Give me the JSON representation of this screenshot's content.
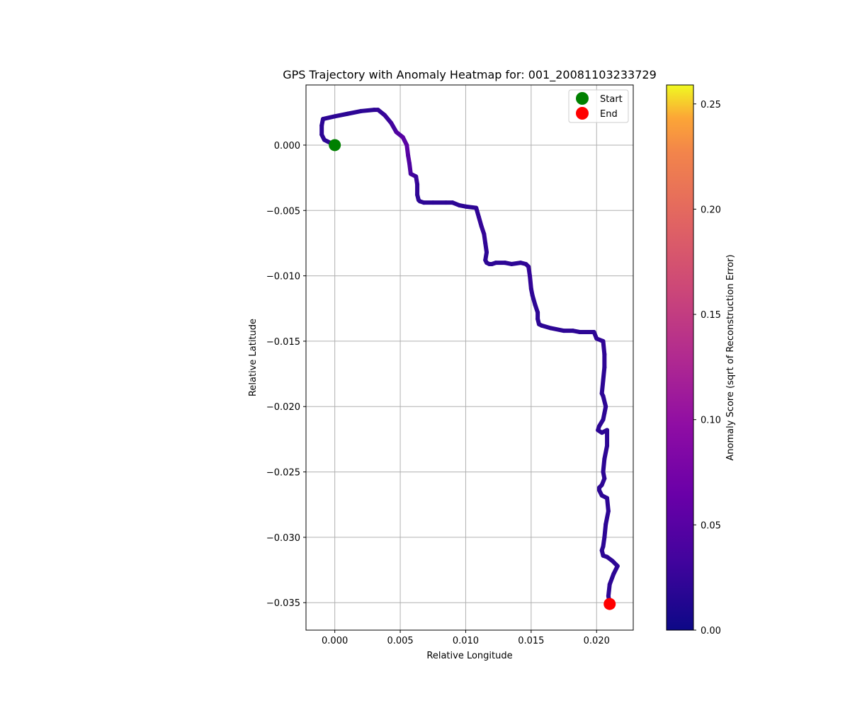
{
  "chart_data": {
    "type": "line",
    "title": "GPS Trajectory with Anomaly Heatmap for: 001_20081103233729",
    "xlabel": "Relative Longitude",
    "ylabel": "Relative Latitude",
    "xlim": [
      -0.0022,
      0.0228
    ],
    "ylim": [
      -0.0371,
      0.0046
    ],
    "xticks": [
      0.0,
      0.005,
      0.01,
      0.015,
      0.02
    ],
    "xtick_labels": [
      "0.000",
      "0.005",
      "0.010",
      "0.015",
      "0.020"
    ],
    "yticks": [
      0.0,
      -0.005,
      -0.01,
      -0.015,
      -0.02,
      -0.025,
      -0.03,
      -0.035
    ],
    "ytick_labels": [
      "0.000",
      "−0.005",
      "−0.010",
      "−0.015",
      "−0.020",
      "−0.025",
      "−0.030",
      "−0.035"
    ],
    "grid": true,
    "legend_placement": "top-right",
    "series": [
      {
        "name": "Start",
        "type": "scatter",
        "color": "#008000",
        "x": [
          0.0
        ],
        "y": [
          0.0
        ]
      },
      {
        "name": "End",
        "type": "scatter",
        "color": "#ff0000",
        "x": [
          0.021
        ],
        "y": [
          -0.0351
        ]
      }
    ],
    "trajectory": {
      "x": [
        0.0,
        -0.0008,
        -0.001,
        -0.001,
        -0.0009,
        0.0,
        0.001,
        0.002,
        0.003,
        0.0033,
        0.0038,
        0.0043,
        0.0047,
        0.0052,
        0.0055,
        0.0056,
        0.0057,
        0.0058,
        0.0062,
        0.0063,
        0.0063,
        0.0064,
        0.0065,
        0.0068,
        0.0075,
        0.0085,
        0.009,
        0.0095,
        0.01,
        0.0108,
        0.011,
        0.0112,
        0.0114,
        0.0115,
        0.0116,
        0.0115,
        0.0116,
        0.0118,
        0.012,
        0.0123,
        0.013,
        0.0135,
        0.0142,
        0.0146,
        0.0148,
        0.0149,
        0.015,
        0.0151,
        0.0153,
        0.0155,
        0.0155,
        0.0156,
        0.0158,
        0.0165,
        0.0175,
        0.0182,
        0.0187,
        0.0193,
        0.0198,
        0.02,
        0.0205,
        0.0206,
        0.0206,
        0.0205,
        0.0204,
        0.0205,
        0.0207,
        0.0206,
        0.0205,
        0.0202,
        0.0201,
        0.0204,
        0.0208,
        0.0208,
        0.0206,
        0.0205,
        0.0206,
        0.0204,
        0.0202,
        0.0202,
        0.0204,
        0.0208,
        0.0209,
        0.0207,
        0.0206,
        0.0205,
        0.0204,
        0.0205,
        0.0208,
        0.0212,
        0.0216,
        0.0213,
        0.021,
        0.0209,
        0.021
      ],
      "y": [
        0.0,
        0.0004,
        0.0008,
        0.0015,
        0.002,
        0.0022,
        0.0024,
        0.0026,
        0.0027,
        0.0027,
        0.0023,
        0.0017,
        0.001,
        0.0006,
        0.0,
        -0.0008,
        -0.0014,
        -0.0022,
        -0.0024,
        -0.003,
        -0.0038,
        -0.0042,
        -0.0043,
        -0.0044,
        -0.0044,
        -0.0044,
        -0.0044,
        -0.0046,
        -0.0047,
        -0.0048,
        -0.0055,
        -0.0062,
        -0.0068,
        -0.0075,
        -0.0082,
        -0.0088,
        -0.009,
        -0.0091,
        -0.0091,
        -0.009,
        -0.009,
        -0.0091,
        -0.009,
        -0.0091,
        -0.0093,
        -0.01,
        -0.011,
        -0.0115,
        -0.0122,
        -0.0128,
        -0.0133,
        -0.0137,
        -0.0138,
        -0.014,
        -0.0142,
        -0.0142,
        -0.0143,
        -0.0143,
        -0.0143,
        -0.0148,
        -0.015,
        -0.016,
        -0.017,
        -0.018,
        -0.019,
        -0.0192,
        -0.02,
        -0.0205,
        -0.021,
        -0.0215,
        -0.0218,
        -0.022,
        -0.0218,
        -0.023,
        -0.024,
        -0.025,
        -0.0255,
        -0.026,
        -0.0262,
        -0.0264,
        -0.0268,
        -0.027,
        -0.028,
        -0.029,
        -0.03,
        -0.0307,
        -0.031,
        -0.0314,
        -0.0315,
        -0.0318,
        -0.0322,
        -0.0328,
        -0.0336,
        -0.0345,
        -0.035
      ],
      "anomaly_score": [
        0.02,
        0.02,
        0.02,
        0.02,
        0.02,
        0.02,
        0.02,
        0.02,
        0.02,
        0.022,
        0.025,
        0.03,
        0.04,
        0.05,
        0.055,
        0.05,
        0.045,
        0.04,
        0.03,
        0.025,
        0.02,
        0.02,
        0.02,
        0.02,
        0.02,
        0.02,
        0.02,
        0.02,
        0.02,
        0.02,
        0.022,
        0.025,
        0.025,
        0.022,
        0.02,
        0.02,
        0.02,
        0.02,
        0.02,
        0.02,
        0.02,
        0.02,
        0.02,
        0.02,
        0.022,
        0.025,
        0.022,
        0.02,
        0.02,
        0.02,
        0.02,
        0.02,
        0.02,
        0.02,
        0.02,
        0.02,
        0.02,
        0.02,
        0.02,
        0.02,
        0.022,
        0.022,
        0.02,
        0.02,
        0.02,
        0.02,
        0.02,
        0.02,
        0.02,
        0.02,
        0.02,
        0.02,
        0.02,
        0.02,
        0.02,
        0.02,
        0.02,
        0.02,
        0.02,
        0.02,
        0.02,
        0.02,
        0.02,
        0.02,
        0.02,
        0.02,
        0.02,
        0.02,
        0.02,
        0.02,
        0.02,
        0.02,
        0.02,
        0.02,
        0.02
      ]
    },
    "colorbar": {
      "label": "Anomaly Score (sqrt of Reconstruction Error)",
      "colormap": "plasma",
      "range": [
        0.0,
        0.259
      ],
      "ticks": [
        0.0,
        0.05,
        0.1,
        0.15,
        0.2,
        0.25
      ],
      "tick_labels": [
        "0.00",
        "0.05",
        "0.10",
        "0.15",
        "0.20",
        "0.25"
      ]
    }
  }
}
